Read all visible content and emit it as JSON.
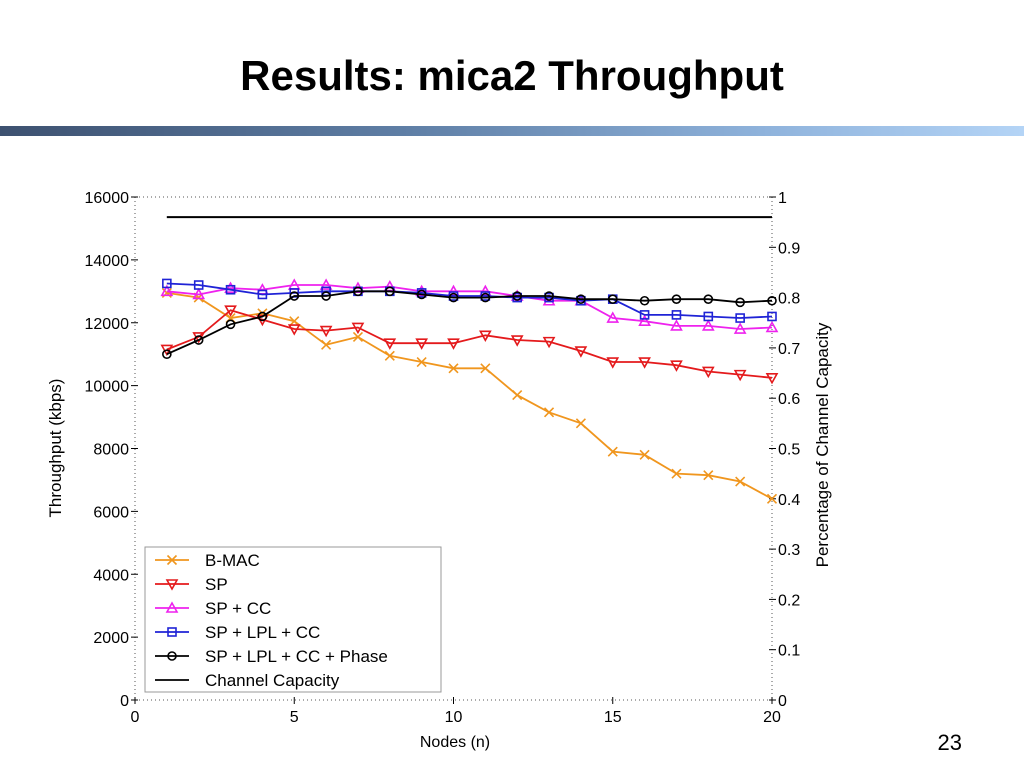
{
  "slide": {
    "title": "Results: mica2 Throughput",
    "page_number": "23"
  },
  "chart_data": {
    "type": "line",
    "title": "",
    "xlabel": "Nodes (n)",
    "ylabel": "Throughput (kbps)",
    "y2label": "Percentage of Channel Capacity",
    "xlim": [
      0,
      20
    ],
    "ylim": [
      0,
      16000
    ],
    "y2lim": [
      0,
      1.0
    ],
    "xticks": [
      "0",
      "5",
      "10",
      "15",
      "20"
    ],
    "yticks": [
      "0",
      "2000",
      "4000",
      "6000",
      "8000",
      "10000",
      "12000",
      "14000",
      "16000"
    ],
    "y2ticks": [
      "0",
      "0.1",
      "0.2",
      "0.3",
      "0.4",
      "0.5",
      "0.6",
      "0.7",
      "0.8",
      "0.9",
      "1"
    ],
    "grid": false,
    "legend_position": "bottom-left",
    "x": [
      1,
      2,
      3,
      4,
      5,
      6,
      7,
      8,
      9,
      10,
      11,
      12,
      13,
      14,
      15,
      16,
      17,
      18,
      19,
      20
    ],
    "series": [
      {
        "name": "B-MAC",
        "color": "#f0961e",
        "marker": "x",
        "values": [
          12950,
          12800,
          12150,
          12300,
          12050,
          11300,
          11550,
          10950,
          10750,
          10550,
          10550,
          9700,
          9150,
          8800,
          7900,
          7800,
          7200,
          7150,
          6950,
          6400
        ]
      },
      {
        "name": "SP",
        "color": "#e41a1c",
        "marker": "triangle-down",
        "values": [
          11150,
          11550,
          12400,
          12100,
          11800,
          11750,
          11850,
          11350,
          11350,
          11350,
          11600,
          11450,
          11400,
          11100,
          10750,
          10750,
          10650,
          10450,
          10350,
          10250
        ]
      },
      {
        "name": "SP + CC",
        "color": "#ee22ee",
        "marker": "triangle-up",
        "values": [
          13000,
          12900,
          13100,
          13050,
          13200,
          13200,
          13100,
          13150,
          13000,
          13000,
          13000,
          12850,
          12700,
          12700,
          12150,
          12050,
          11900,
          11900,
          11800,
          11850
        ]
      },
      {
        "name": "SP + LPL + CC",
        "color": "#1f23d6",
        "marker": "square",
        "values": [
          13250,
          13200,
          13050,
          12900,
          12950,
          13000,
          13000,
          13000,
          12950,
          12850,
          12850,
          12800,
          12800,
          12700,
          12750,
          12250,
          12250,
          12200,
          12150,
          12200
        ]
      },
      {
        "name": "SP + LPL + CC + Phase",
        "color": "#000000",
        "marker": "circle",
        "values": [
          11000,
          11450,
          11950,
          12200,
          12850,
          12850,
          13000,
          13000,
          12900,
          12800,
          12800,
          12850,
          12850,
          12750,
          12750,
          12700,
          12750,
          12750,
          12650,
          12700
        ]
      },
      {
        "name": "Channel Capacity",
        "color": "#000000",
        "marker": "none",
        "values": [
          15360,
          15360,
          15360,
          15360,
          15360,
          15360,
          15360,
          15360,
          15360,
          15360,
          15360,
          15360,
          15360,
          15360,
          15360,
          15360,
          15360,
          15360,
          15360,
          15360
        ]
      }
    ]
  }
}
